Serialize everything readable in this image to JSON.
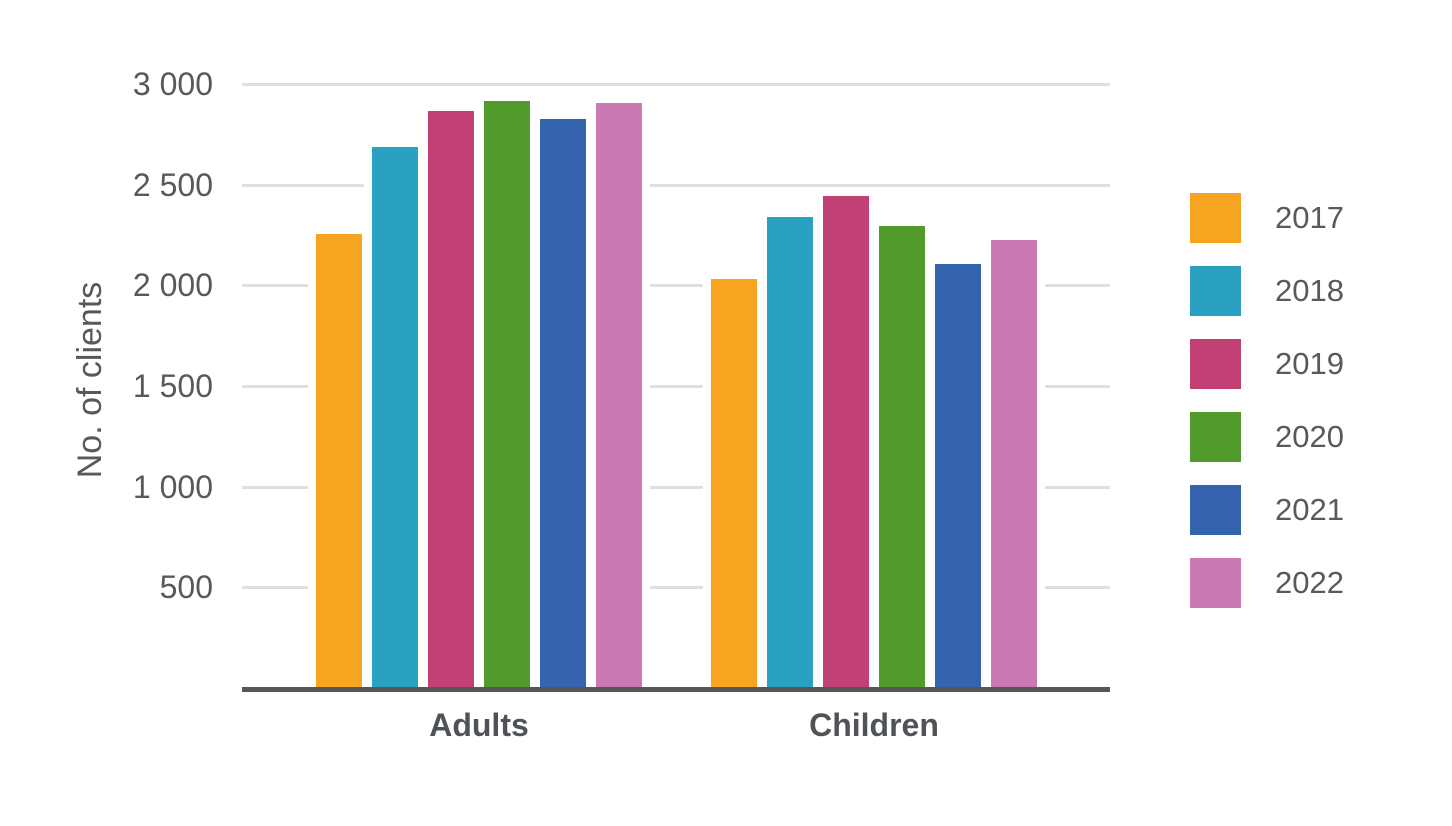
{
  "chart_data": {
    "type": "bar",
    "title": "",
    "xlabel": "",
    "ylabel": "No. of clients",
    "categories": [
      "Adults",
      "Children"
    ],
    "series": [
      {
        "name": "2017",
        "color": "#F7A521",
        "values": [
          2250,
          2025
        ]
      },
      {
        "name": "2018",
        "color": "#2BA1C2",
        "values": [
          2680,
          2335
        ]
      },
      {
        "name": "2019",
        "color": "#C14175",
        "values": [
          2860,
          2440
        ]
      },
      {
        "name": "2020",
        "color": "#539A2D",
        "values": [
          2910,
          2290
        ]
      },
      {
        "name": "2021",
        "color": "#3464AE",
        "values": [
          2820,
          2100
        ]
      },
      {
        "name": "2022",
        "color": "#C97AB2",
        "values": [
          2900,
          2220
        ]
      }
    ],
    "yticks": [
      {
        "value": 3000,
        "label": "3 000"
      },
      {
        "value": 2500,
        "label": "2 500"
      },
      {
        "value": 2000,
        "label": "2 000"
      },
      {
        "value": 1500,
        "label": "1 500"
      },
      {
        "value": 1000,
        "label": "1 000"
      },
      {
        "value": 500,
        "label": "500"
      }
    ],
    "ylim": [
      0,
      3000
    ],
    "grid": true,
    "legend_position": "right"
  },
  "colors": {
    "background": "#FFFFFF",
    "gridline": "#DDDFE1",
    "axis_line": "#55585B",
    "tick_text": "#595959",
    "axis_title_text": "#595959",
    "category_text": "#4F5357",
    "legend_text": "#595959"
  }
}
